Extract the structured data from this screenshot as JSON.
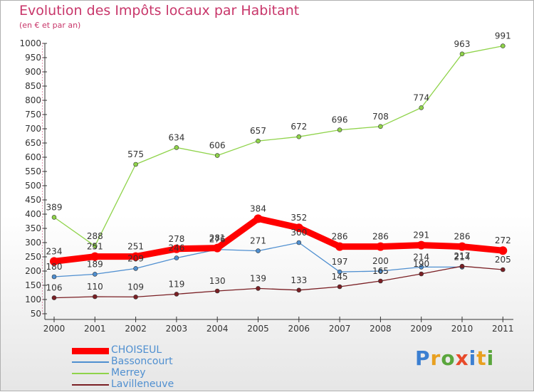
{
  "title": "Evolution des Impôts locaux par Habitant",
  "subtitle": "(en € et par an)",
  "logo": "Proxiti",
  "chart_data": {
    "type": "line",
    "title": "Evolution des Impôts locaux par Habitant",
    "subtitle": "(en € et par an)",
    "xlabel": "",
    "ylabel": "",
    "x": [
      "2000",
      "2001",
      "2002",
      "2003",
      "2004",
      "2005",
      "2006",
      "2007",
      "2008",
      "2009",
      "2010",
      "2011"
    ],
    "ylim": [
      50,
      1000
    ],
    "yticks": [
      50,
      100,
      150,
      200,
      250,
      300,
      350,
      400,
      450,
      500,
      550,
      600,
      650,
      700,
      750,
      800,
      850,
      900,
      950,
      1000
    ],
    "grid": false,
    "legend_position": "bottom-left",
    "series": [
      {
        "name": "CHOISEUL",
        "color": "#ff0000",
        "values": [
          234,
          251,
          251,
          278,
          281,
          384,
          352,
          286,
          286,
          291,
          286,
          272
        ]
      },
      {
        "name": "Bassoncourt",
        "color": "#4f8fd0",
        "values": [
          180,
          189,
          209,
          246,
          276,
          271,
          300,
          197,
          200,
          214,
          214,
          null
        ]
      },
      {
        "name": "Merrey",
        "color": "#8fd34a",
        "values": [
          389,
          288,
          575,
          634,
          606,
          657,
          672,
          696,
          708,
          774,
          963,
          991
        ]
      },
      {
        "name": "Lavilleneuve",
        "color": "#7a1f24",
        "values": [
          106,
          110,
          109,
          119,
          130,
          139,
          133,
          145,
          165,
          190,
          217,
          205
        ]
      }
    ],
    "data_labels": {
      "CHOISEUL": [
        "234",
        "251",
        "251",
        "278",
        "281",
        "384",
        "352",
        "286",
        "286",
        "291",
        "286",
        "272"
      ],
      "Bassoncourt": [
        "180",
        "189",
        "209",
        "246",
        "276",
        "271",
        "300",
        "197",
        "200",
        "214",
        "214",
        ""
      ],
      "Merrey": [
        "389",
        "288",
        "575",
        "634",
        "606",
        "657",
        "672",
        "696",
        "708",
        "774",
        "963",
        "991"
      ],
      "Lavilleneuve": [
        "106",
        "110",
        "109",
        "119",
        "130",
        "139",
        "133",
        "145",
        "165",
        "190",
        "217",
        "205"
      ]
    }
  }
}
